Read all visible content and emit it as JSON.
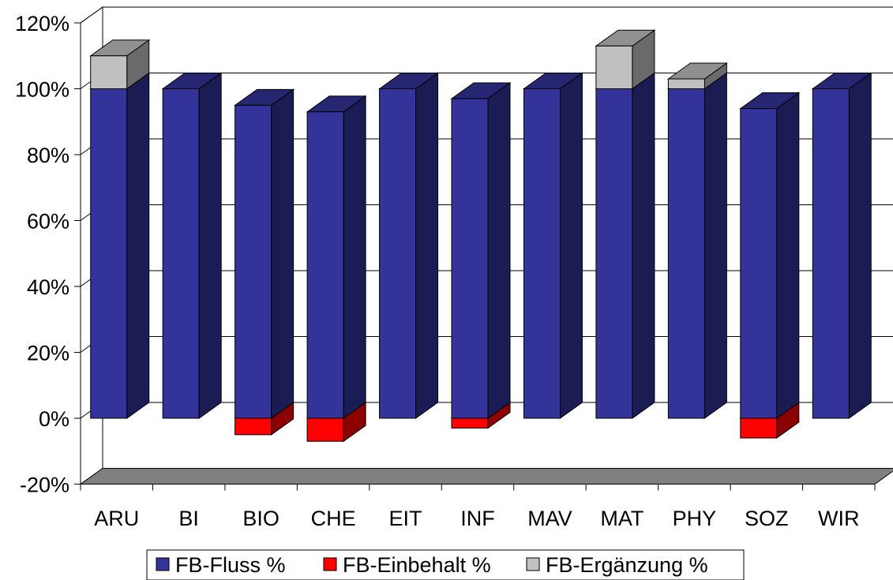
{
  "chart_data": {
    "type": "bar",
    "stacked": true,
    "three_d": true,
    "categories": [
      "ARU",
      "BI",
      "BIO",
      "CHE",
      "EIT",
      "INF",
      "MAV",
      "MAT",
      "PHY",
      "SOZ",
      "WIR"
    ],
    "series": [
      {
        "name": "FB-Fluss %",
        "color": "#333399",
        "values": [
          100,
          100,
          95,
          93,
          100,
          97,
          100,
          100,
          100,
          94,
          100
        ]
      },
      {
        "name": "FB-Einbehalt %",
        "color": "#ff0000",
        "values": [
          0,
          0,
          -5,
          -7,
          0,
          -3,
          0,
          0,
          0,
          -6,
          0
        ]
      },
      {
        "name": "FB-Ergänzung %",
        "color": "#c0c0c0",
        "values": [
          10,
          0,
          0,
          0,
          0,
          0,
          0,
          13,
          3,
          0,
          0
        ]
      }
    ],
    "y_ticks": [
      "-20%",
      "0%",
      "20%",
      "40%",
      "60%",
      "80%",
      "100%",
      "120%"
    ],
    "ylim": [
      -20,
      120
    ],
    "grid": true,
    "legend_position": "bottom"
  }
}
